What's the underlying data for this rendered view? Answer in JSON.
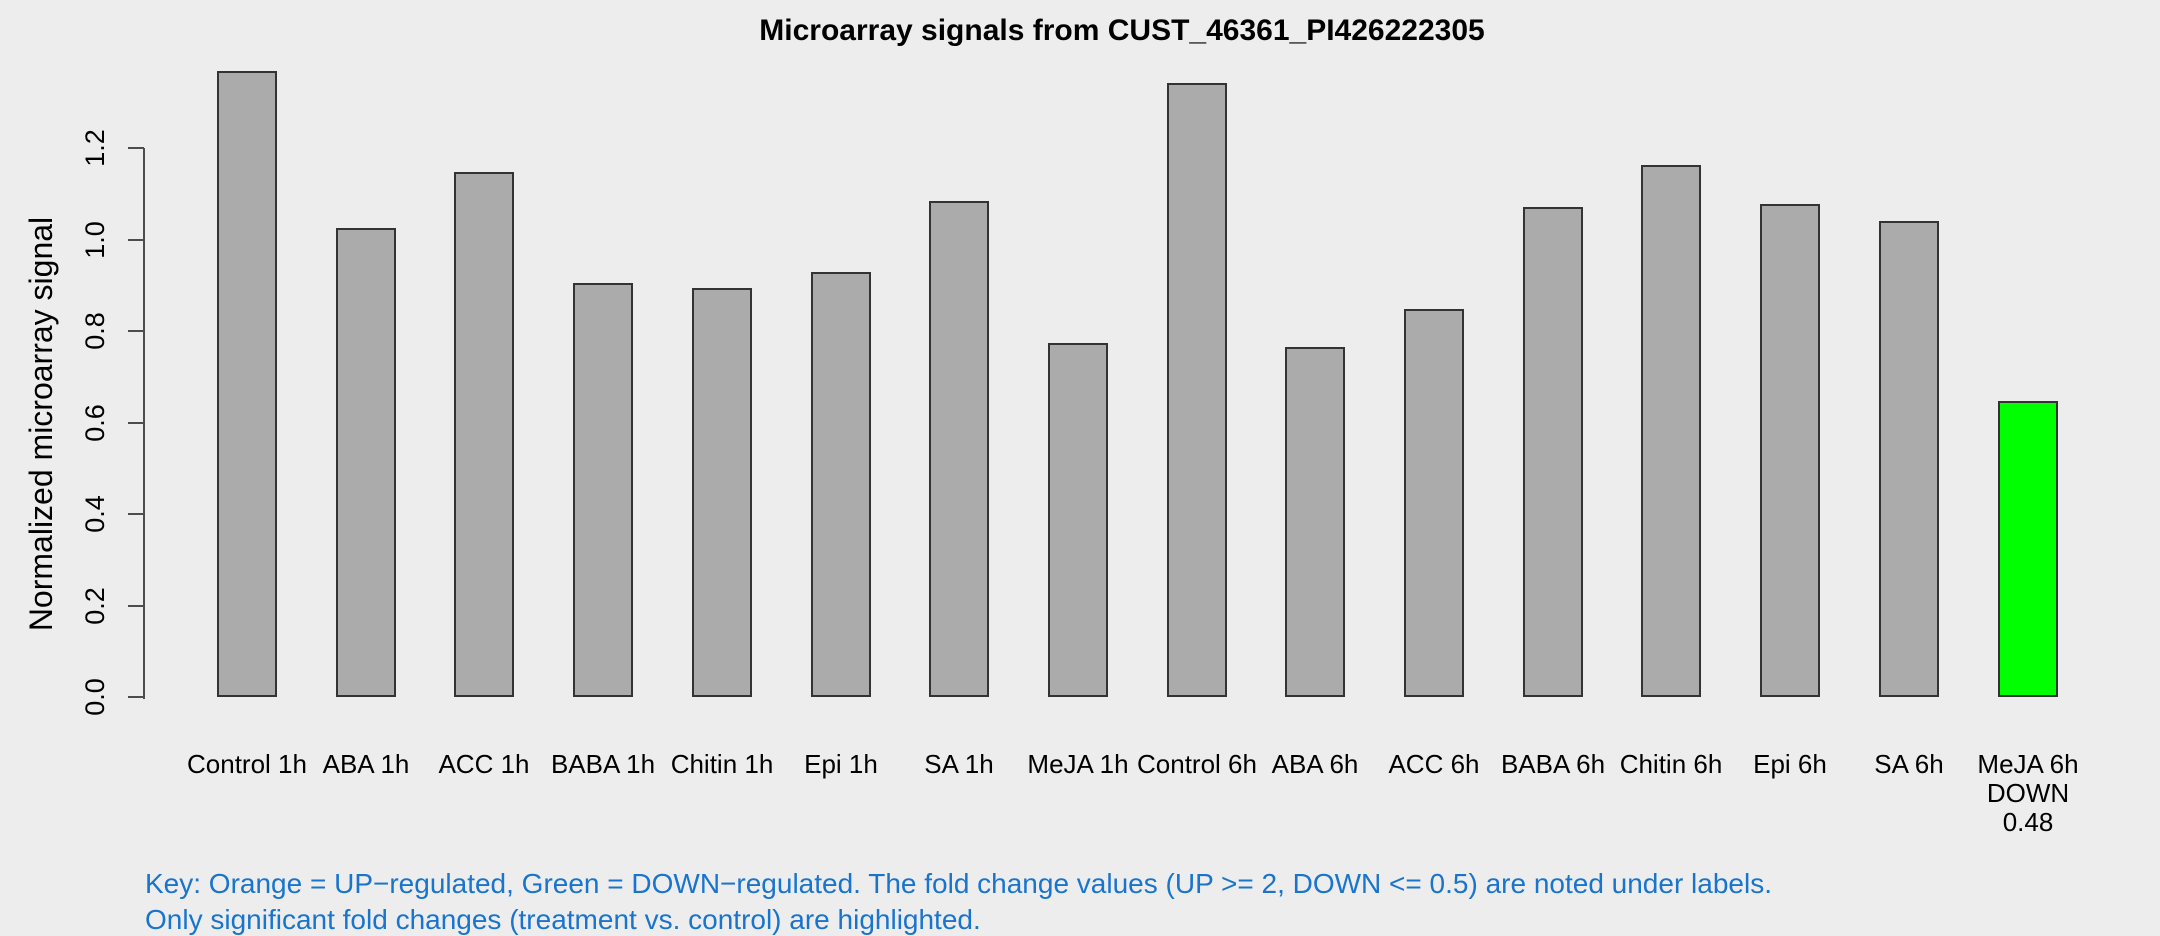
{
  "chart_data": {
    "type": "bar",
    "title": "Microarray signals from CUST_46361_PI426222305",
    "xlabel": "",
    "ylabel": "Normalized microarray signal",
    "ylim": [
      0,
      1.2
    ],
    "ytick_labels": [
      "0.0",
      "0.2",
      "0.4",
      "0.6",
      "0.8",
      "1.0",
      "1.2"
    ],
    "ytick_values": [
      0.0,
      0.2,
      0.4,
      0.6,
      0.8,
      1.0,
      1.2
    ],
    "grid": false,
    "legend_position": "none",
    "bar_fill_default": "#ABABAB",
    "bar_fill_down_regulated": "#00FF00",
    "bar_border": "#333333",
    "bars": [
      {
        "label": "Control 1h",
        "value": 1.368,
        "color": "#ABABAB",
        "note_lines": []
      },
      {
        "label": "ABA 1h",
        "value": 1.026,
        "color": "#ABABAB",
        "note_lines": []
      },
      {
        "label": "ACC 1h",
        "value": 1.148,
        "color": "#ABABAB",
        "note_lines": []
      },
      {
        "label": "BABA 1h",
        "value": 0.904,
        "color": "#ABABAB",
        "note_lines": []
      },
      {
        "label": "Chitin 1h",
        "value": 0.893,
        "color": "#ABABAB",
        "note_lines": []
      },
      {
        "label": "Epi 1h",
        "value": 0.93,
        "color": "#ABABAB",
        "note_lines": []
      },
      {
        "label": "SA 1h",
        "value": 1.084,
        "color": "#ABABAB",
        "note_lines": []
      },
      {
        "label": "MeJA 1h",
        "value": 0.774,
        "color": "#ABABAB",
        "note_lines": []
      },
      {
        "label": "Control 6h",
        "value": 1.343,
        "color": "#ABABAB",
        "note_lines": []
      },
      {
        "label": "ABA 6h",
        "value": 0.765,
        "color": "#ABABAB",
        "note_lines": []
      },
      {
        "label": "ACC 6h",
        "value": 0.848,
        "color": "#ABABAB",
        "note_lines": []
      },
      {
        "label": "BABA 6h",
        "value": 1.071,
        "color": "#ABABAB",
        "note_lines": []
      },
      {
        "label": "Chitin 6h",
        "value": 1.162,
        "color": "#ABABAB",
        "note_lines": []
      },
      {
        "label": "Epi 6h",
        "value": 1.077,
        "color": "#ABABAB",
        "note_lines": []
      },
      {
        "label": "SA 6h",
        "value": 1.041,
        "color": "#ABABAB",
        "note_lines": []
      },
      {
        "label": "MeJA 6h",
        "value": 0.647,
        "color": "#00FF00",
        "note_lines": [
          "DOWN",
          "0.48"
        ],
        "regulation": "DOWN",
        "fold_change": "0.48"
      }
    ]
  },
  "footer": {
    "line1": "Key: Orange = UP−regulated, Green = DOWN−regulated. The fold change values (UP >= 2, DOWN <= 0.5) are noted under labels.",
    "line2": "Only significant fold changes (treatment vs. control) are highlighted.",
    "color": "#1874CD"
  },
  "colors": {
    "background": "#EDEDED",
    "axis": "#4D4D4D",
    "text": "#000000"
  }
}
